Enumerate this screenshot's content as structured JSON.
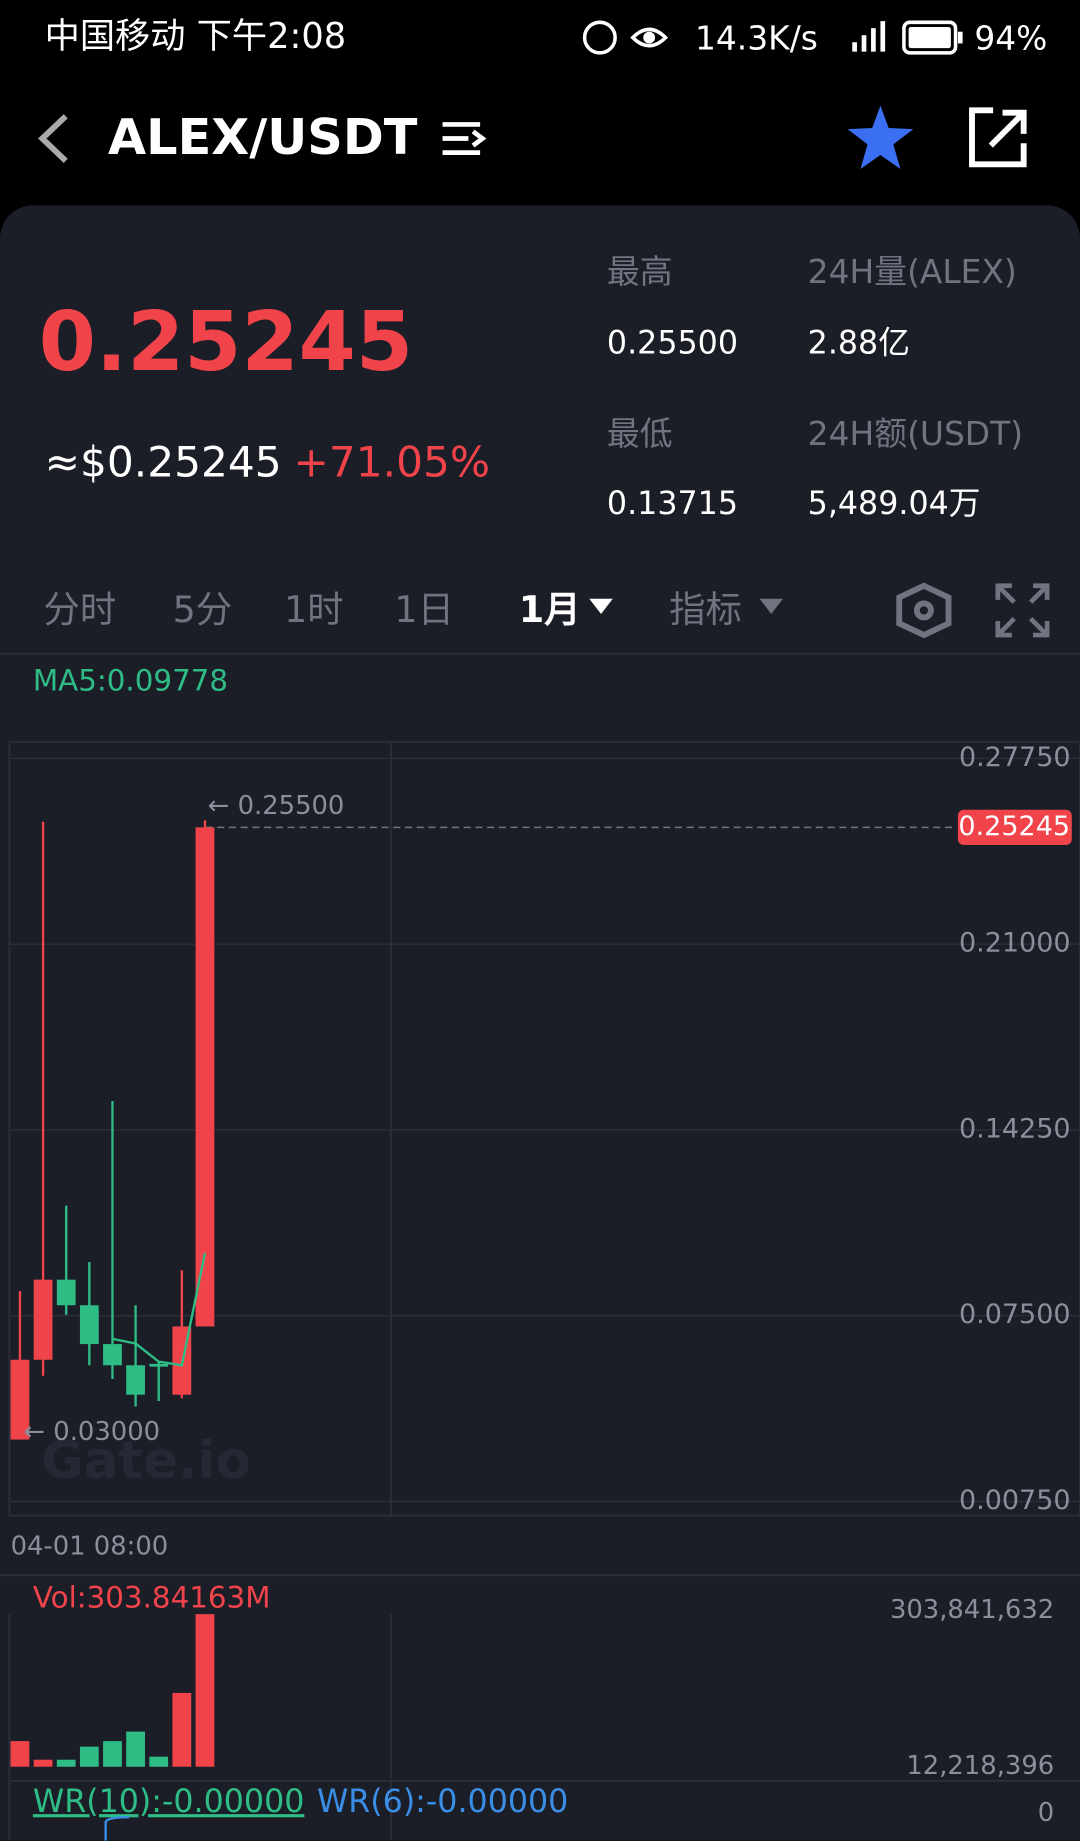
{
  "status_bar": {
    "carrier_time": "中国移动 下午2:08",
    "speed": "14.3K/s",
    "battery": "94%"
  },
  "header": {
    "pair": "ALEX/USDT"
  },
  "ticker": {
    "price": "0.25245",
    "usd_price": "≈$0.25245",
    "change": "+71.05%",
    "high_label": "最高",
    "high": "0.25500",
    "vol_label": "24H量(ALEX)",
    "vol": "2.88亿",
    "low_label": "最低",
    "low": "0.13715",
    "amount_label": "24H额(USDT)",
    "amount": "5,489.04万"
  },
  "tabs": [
    "分时",
    "5分",
    "1时",
    "1日",
    "1月",
    "指标"
  ],
  "chart": {
    "ma_label": "MA5:0.09778",
    "ylim": [
      0.0024,
      0.2835
    ],
    "yticks": [
      {
        "value": 0.2775,
        "label": "0.27750"
      },
      {
        "value": 0.21,
        "label": "0.21000"
      },
      {
        "value": 0.1425,
        "label": "0.14250"
      },
      {
        "value": 0.075,
        "label": "0.07500"
      },
      {
        "value": 0.0075,
        "label": "0.00750"
      }
    ],
    "up_color": "#f0444a",
    "down_color": "#2ebd85",
    "candles": [
      {
        "open": 0.03,
        "high": 0.084,
        "low": 0.03,
        "close": 0.059
      },
      {
        "open": 0.059,
        "high": 0.2545,
        "low": 0.0532,
        "close": 0.0881
      },
      {
        "open": 0.0881,
        "high": 0.115,
        "low": 0.0753,
        "close": 0.0788
      },
      {
        "open": 0.0788,
        "high": 0.0945,
        "low": 0.057,
        "close": 0.0647
      },
      {
        "open": 0.0647,
        "high": 0.153,
        "low": 0.052,
        "close": 0.057
      },
      {
        "open": 0.057,
        "high": 0.0788,
        "low": 0.042,
        "close": 0.0463
      },
      {
        "open": 0.0575,
        "high": 0.0585,
        "low": 0.044,
        "close": 0.0565
      },
      {
        "open": 0.0463,
        "high": 0.0915,
        "low": 0.045,
        "close": 0.0711
      },
      {
        "open": 0.0711,
        "high": 0.255,
        "low": 0.0711,
        "close": 0.25245
      }
    ],
    "ma5": [
      null,
      null,
      null,
      null,
      0.0666,
      0.0649,
      0.0583,
      0.057,
      0.09778
    ],
    "ma_color": "#2ebd85",
    "current_price": {
      "value": 0.25245,
      "label": "0.25245"
    },
    "high_marker": {
      "value": 0.255,
      "label": "← 0.25500"
    },
    "low_marker": {
      "value": 0.03,
      "label": "← 0.03000"
    },
    "x_label": "04-01 08:00",
    "watermark": "Gate.io"
  },
  "volume": {
    "label": "Vol:303.84163M",
    "ylim": [
      0,
      303841632
    ],
    "values": [
      51000000,
      14000000,
      14000000,
      40000000,
      51000000,
      70000000,
      20000000,
      147000000,
      303841632
    ],
    "axis_labels": [
      "303,841,632",
      "12,218,396",
      "0"
    ]
  },
  "indicator": [
    "WR(10):-0.00000",
    "WR(6):-0.00000"
  ]
}
